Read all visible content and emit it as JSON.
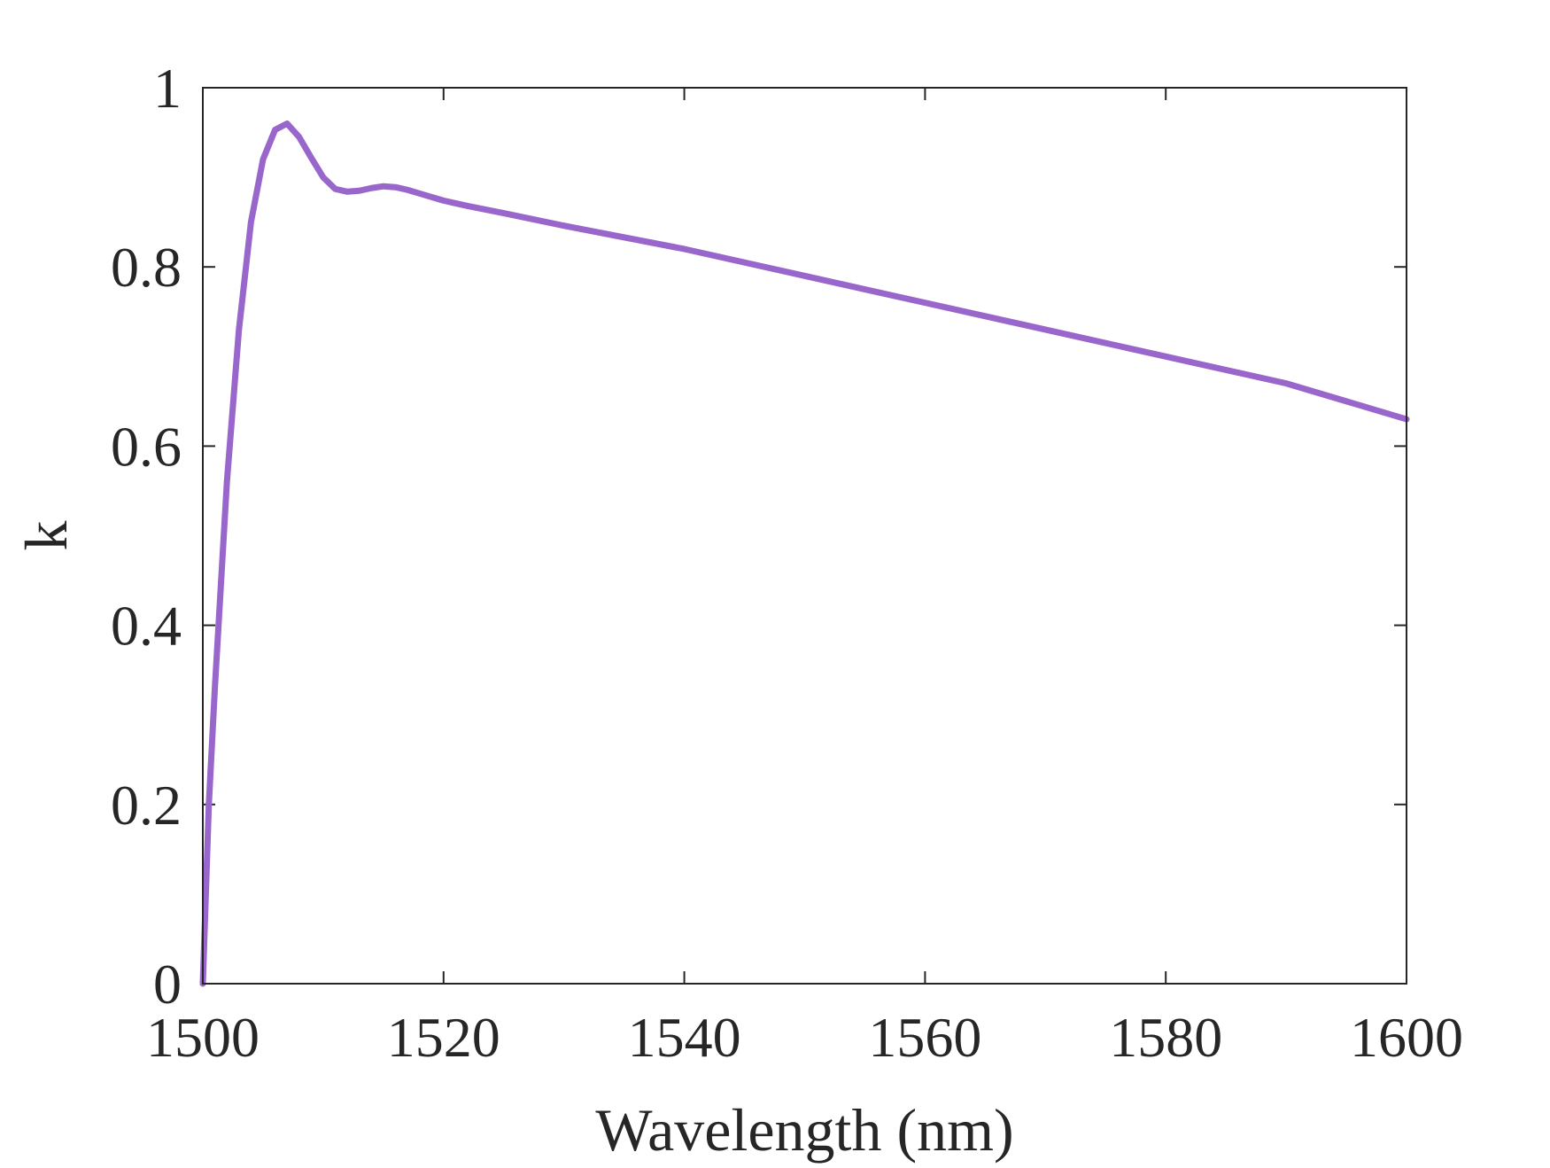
{
  "chart_data": {
    "type": "line",
    "title": "",
    "xlabel": "Wavelength (nm)",
    "ylabel": "k",
    "xlim": [
      1500,
      1600
    ],
    "ylim": [
      0,
      1
    ],
    "xticks": [
      "1500",
      "1520",
      "1540",
      "1560",
      "1580",
      "1600"
    ],
    "yticks": [
      "0",
      "0.2",
      "0.4",
      "0.6",
      "0.8",
      "1"
    ],
    "grid": false,
    "legend": "none",
    "colors": {
      "series": "#9966CC",
      "axes": "#262626",
      "background": "#FFFFFF"
    },
    "series": [
      {
        "x": [
          1500,
          1500.5,
          1501,
          1502,
          1503,
          1504,
          1505,
          1506,
          1507,
          1508,
          1509,
          1510,
          1511,
          1512,
          1513,
          1514,
          1515,
          1516,
          1517,
          1518,
          1520,
          1522,
          1525,
          1530,
          1540,
          1550,
          1560,
          1570,
          1580,
          1590,
          1600
        ],
        "y": [
          0.0,
          0.2,
          0.33,
          0.56,
          0.73,
          0.85,
          0.92,
          0.953,
          0.96,
          0.945,
          0.922,
          0.9,
          0.887,
          0.884,
          0.885,
          0.888,
          0.89,
          0.889,
          0.886,
          0.882,
          0.874,
          0.868,
          0.86,
          0.846,
          0.82,
          0.79,
          0.76,
          0.73,
          0.7,
          0.67,
          0.63
        ]
      }
    ]
  }
}
